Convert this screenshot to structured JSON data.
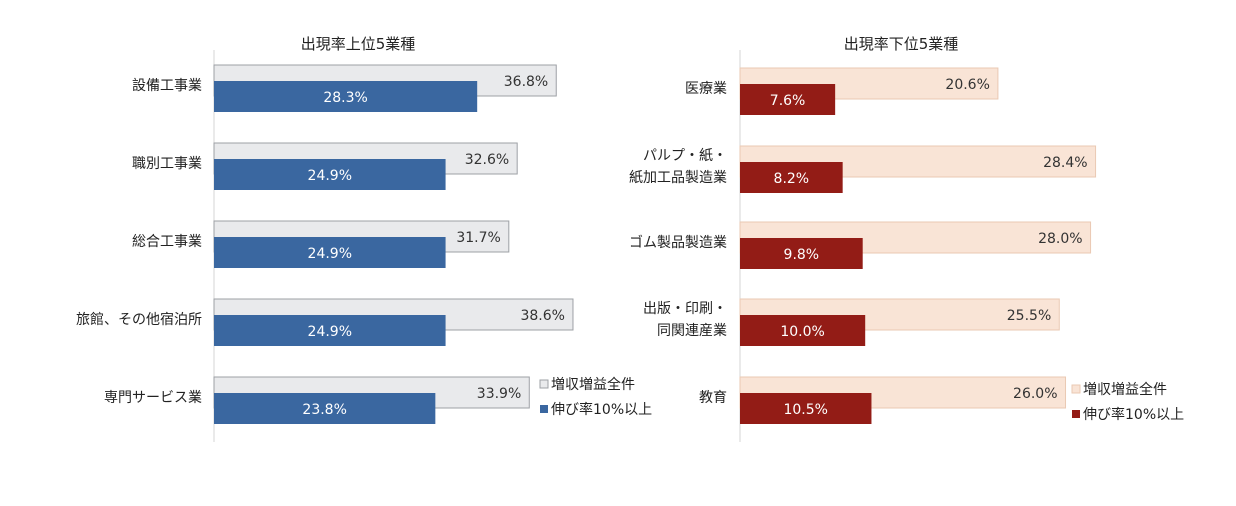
{
  "chart_data": [
    {
      "type": "bar",
      "orientation": "horizontal",
      "title": "出現率上位5業種",
      "categories": [
        "設備工事業",
        "職別工事業",
        "総合工事業",
        "旅館、その他宿泊所",
        "専門サービス業"
      ],
      "series": [
        {
          "name": "増収増益全件",
          "values": [
            36.8,
            32.6,
            31.7,
            38.6,
            33.9
          ],
          "labels": [
            "36.8%",
            "32.6%",
            "31.7%",
            "38.6%",
            "33.9%"
          ],
          "color": "#e9eaec",
          "stroke": "#9da0a5",
          "label_color": "#333333"
        },
        {
          "name": "伸び率10%以上",
          "values": [
            28.3,
            24.9,
            24.9,
            24.9,
            23.8
          ],
          "labels": [
            "28.3%",
            "24.9%",
            "24.9%",
            "24.9%",
            "23.8%"
          ],
          "color": "#3a67a0",
          "label_color": "#ffffff"
        }
      ],
      "legend": "bottom-right",
      "grid": false,
      "xlim": [
        0,
        40
      ]
    },
    {
      "type": "bar",
      "orientation": "horizontal",
      "title": "出現率下位5業種",
      "categories": [
        "医療業",
        "パルプ・紙・\n紙加工品製造業",
        "ゴム製品製造業",
        "出版・印刷・\n同関連産業",
        "教育"
      ],
      "series": [
        {
          "name": "増収増益全件",
          "values": [
            20.6,
            28.4,
            28.0,
            25.5,
            26.0
          ],
          "labels": [
            "20.6%",
            "28.4%",
            "28.0%",
            "25.5%",
            "26.0%"
          ],
          "color": "#f9e4d6",
          "stroke": "#eac9b3",
          "label_color": "#333333"
        },
        {
          "name": "伸び率10%以上",
          "values": [
            7.6,
            8.2,
            9.8,
            10.0,
            10.5
          ],
          "labels": [
            "7.6%",
            "8.2%",
            "9.8%",
            "10.0%",
            "10.5%"
          ],
          "color": "#931c16",
          "label_color": "#ffffff"
        }
      ],
      "legend": "bottom-right",
      "grid": false,
      "xlim": [
        0,
        40
      ]
    }
  ]
}
